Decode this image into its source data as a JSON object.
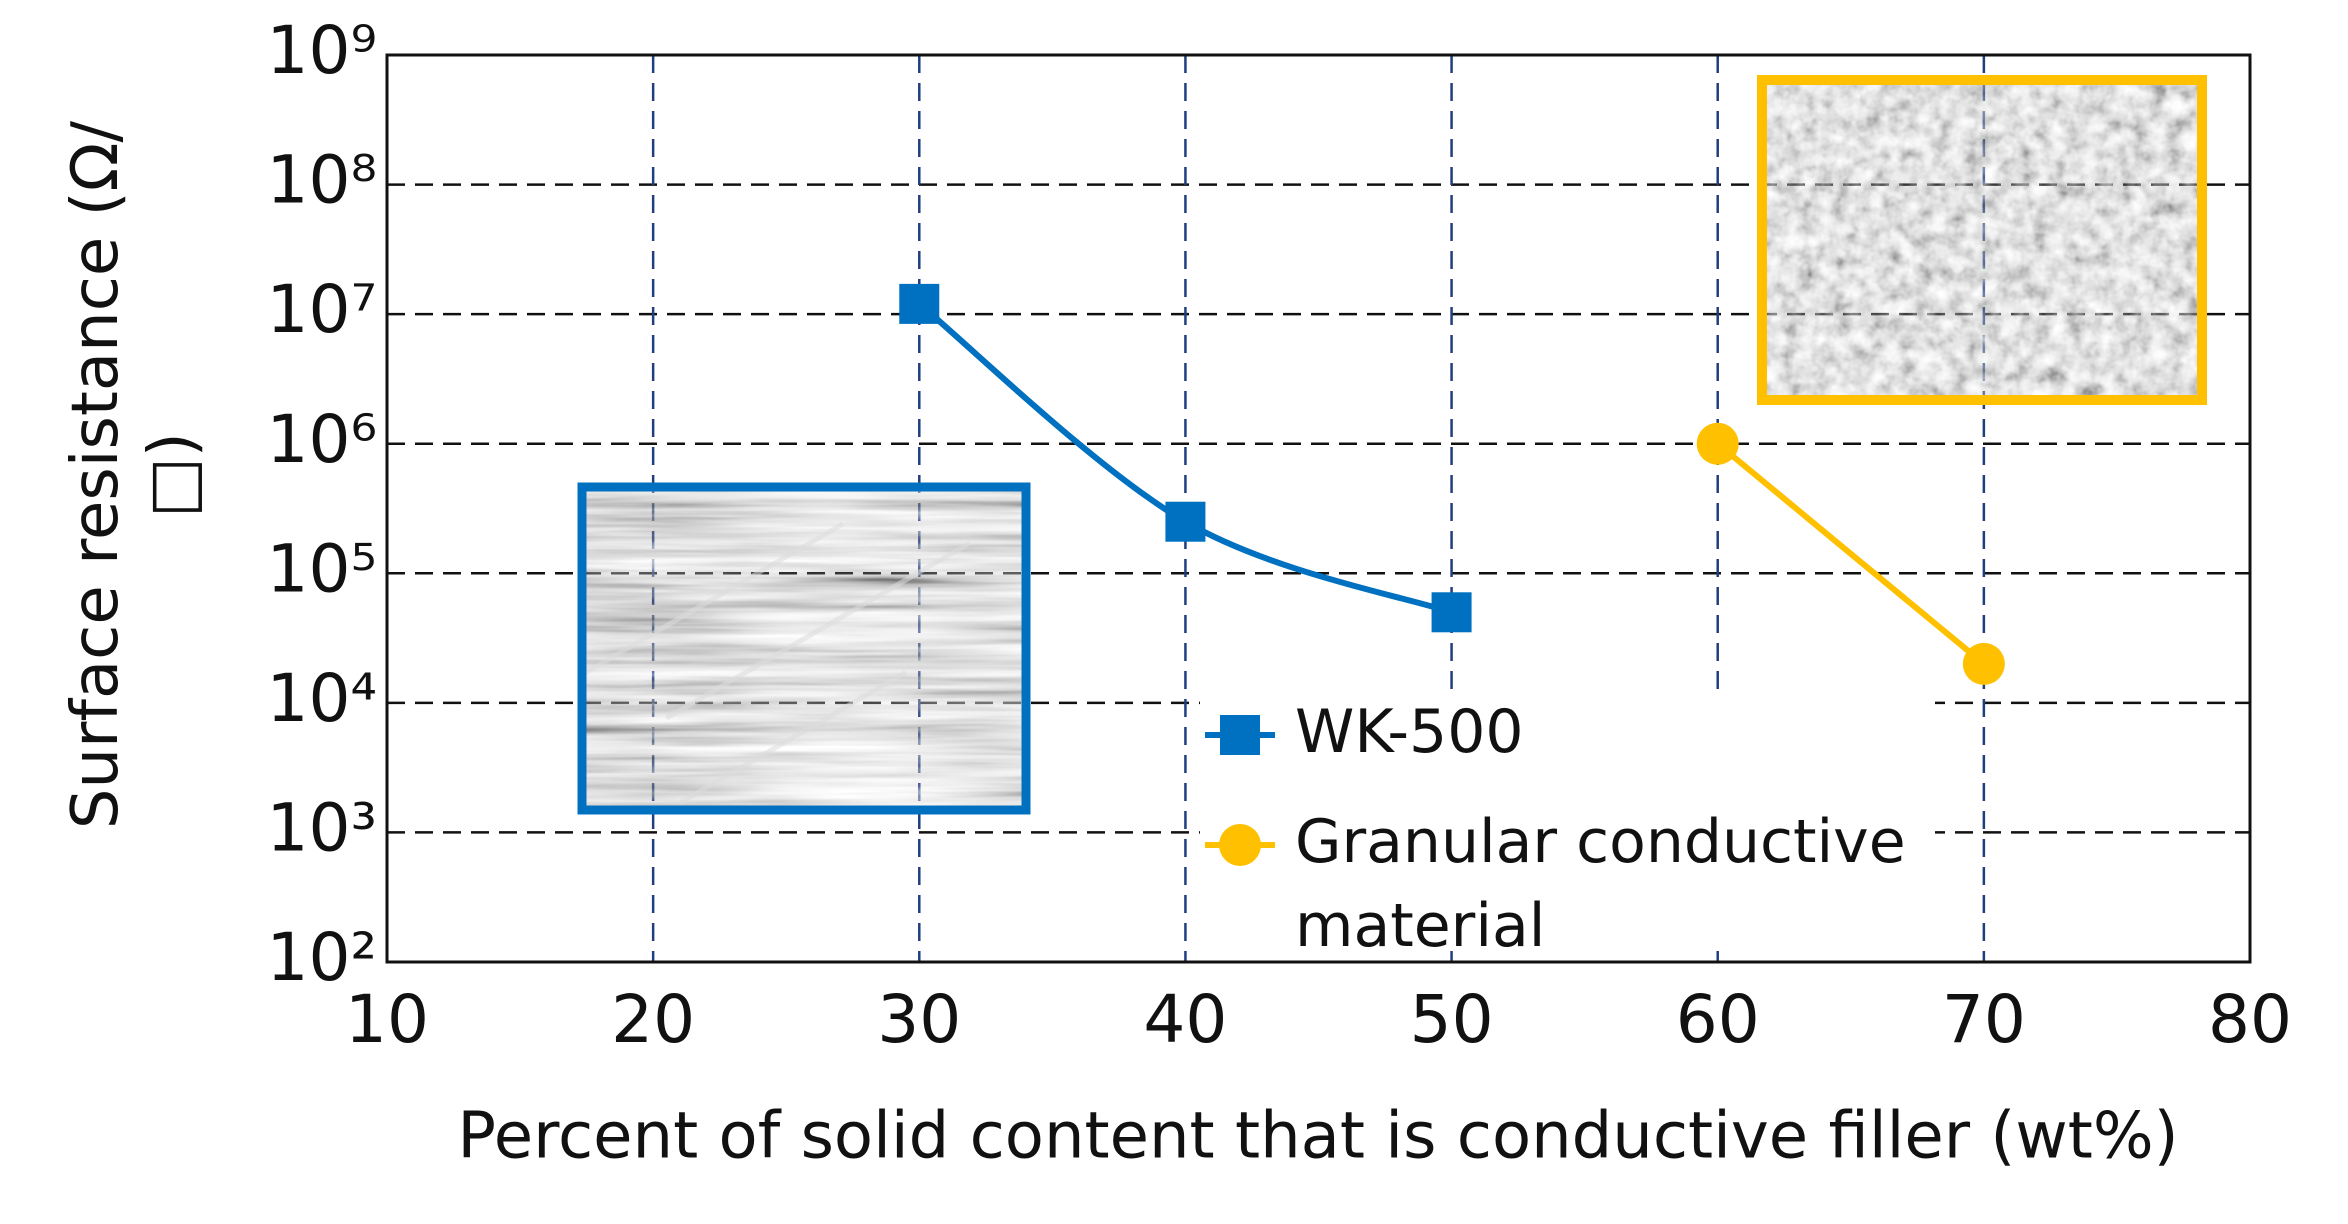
{
  "chart_data": {
    "type": "line",
    "x_label": "Percent of solid content that is conductive filler (wt%)",
    "y_label": "Surface resistance (Ω/□)",
    "log_scale_y": true,
    "grid": true,
    "xlim": [
      10,
      80
    ],
    "xticks": [
      10,
      20,
      30,
      40,
      50,
      60,
      70,
      80
    ],
    "ylim": [
      100,
      1000000000
    ],
    "yticks": [
      {
        "value": 100,
        "label": "10²"
      },
      {
        "value": 1000,
        "label": "10³"
      },
      {
        "value": 10000,
        "label": "10⁴"
      },
      {
        "value": 100000,
        "label": "10⁵"
      },
      {
        "value": 1000000,
        "label": "10⁶"
      },
      {
        "value": 10000000,
        "label": "10⁷"
      },
      {
        "value": 100000000,
        "label": "10⁸"
      },
      {
        "value": 1000000000,
        "label": "10⁹"
      }
    ],
    "series": [
      {
        "name": "WK-500",
        "color": "#0070c0",
        "marker": "square",
        "x": [
          30,
          40,
          50
        ],
        "values": [
          12000000,
          250000,
          50000
        ]
      },
      {
        "name": "Granular conductive material",
        "color": "#ffc000",
        "marker": "circle",
        "x": [
          60,
          70
        ],
        "values": [
          1000000,
          20000
        ]
      }
    ]
  }
}
